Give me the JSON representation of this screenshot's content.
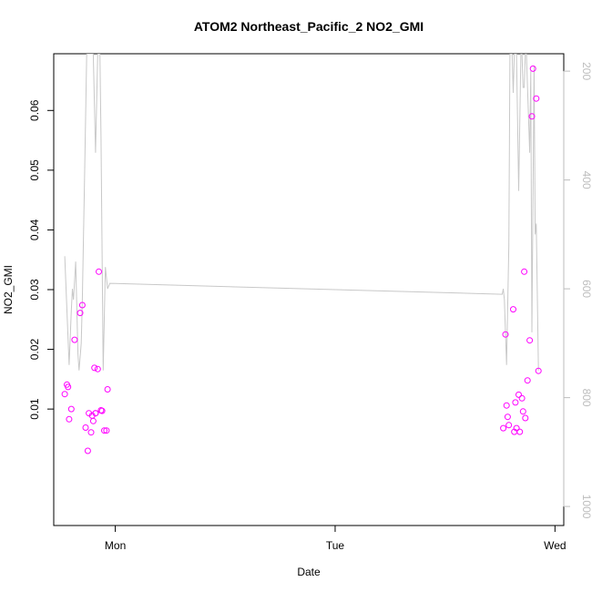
{
  "chart_data": {
    "type": "scatter",
    "title": "ATOM2 Northeast_Pacific_2 NO2_GMI",
    "xlabel": "Date",
    "ylabel": "NO2_GMI",
    "x_ticks": [
      {
        "day": 1,
        "label": "Mon"
      },
      {
        "day": 2,
        "label": "Tue"
      },
      {
        "day": 3,
        "label": "Wed"
      }
    ],
    "xlim_days": [
      0.72,
      3.04
    ],
    "ylim": [
      -0.0095,
      0.0695
    ],
    "y_ticks": [
      0.01,
      0.02,
      0.03,
      0.04,
      0.05,
      0.06
    ],
    "y2_ticks": [
      200,
      400,
      600,
      800,
      1000
    ],
    "y2lim_reversed": [
      1035,
      168
    ],
    "grid": false,
    "series": [
      {
        "kind": "points",
        "axis": "left",
        "color": "#ff00ff",
        "x_days": [
          0.77,
          0.78,
          0.785,
          0.79,
          0.8,
          0.815,
          0.84,
          0.85,
          0.865,
          0.875,
          0.88,
          0.89,
          0.895,
          0.9,
          0.905,
          0.91,
          0.91,
          0.92,
          0.925,
          0.935,
          0.94,
          0.95,
          0.96,
          0.965,
          2.765,
          2.775,
          2.78,
          2.785,
          2.79,
          2.81,
          2.815,
          2.82,
          2.825,
          2.835,
          2.84,
          2.85,
          2.855,
          2.86,
          2.865,
          2.875,
          2.885,
          2.895,
          2.9,
          2.915,
          2.925
        ],
        "y": [
          0.0125,
          0.0141,
          0.0137,
          0.0083,
          0.01,
          0.0216,
          0.0261,
          0.0274,
          0.0069,
          0.003,
          0.0093,
          0.0061,
          0.0089,
          0.008,
          0.0169,
          0.0093,
          0.0093,
          0.0167,
          0.033,
          0.0098,
          0.0097,
          0.0064,
          0.0064,
          0.0133,
          0.0068,
          0.0225,
          0.0106,
          0.0087,
          0.0073,
          0.0267,
          0.0062,
          0.0111,
          0.0068,
          0.0124,
          0.0062,
          0.0118,
          0.0096,
          0.033,
          0.0085,
          0.0148,
          0.0215,
          0.059,
          0.067,
          0.062,
          0.0164
        ]
      },
      {
        "kind": "line",
        "axis": "right",
        "color": "#c8c8c8",
        "x_days": [
          0.77,
          0.78,
          0.79,
          0.8,
          0.805,
          0.81,
          0.82,
          0.83,
          0.835,
          0.845,
          0.85,
          0.86,
          0.87,
          0.88,
          0.89,
          0.9,
          0.91,
          0.92,
          0.93,
          0.935,
          0.945,
          0.955,
          0.965,
          0.975,
          2.76,
          2.765,
          2.77,
          2.78,
          2.79,
          2.795,
          2.805,
          2.81,
          2.815,
          2.825,
          2.835,
          2.845,
          2.85,
          2.855,
          2.86,
          2.865,
          2.87,
          2.875,
          2.885,
          2.89,
          2.895,
          2.905,
          2.91,
          2.915,
          2.925
        ],
        "y": [
          540,
          640,
          740,
          640,
          600,
          620,
          550,
          720,
          750,
          700,
          620,
          400,
          168,
          168,
          168,
          168,
          350,
          168,
          168,
          320,
          750,
          560,
          600,
          590,
          610,
          600,
          620,
          740,
          520,
          168,
          168,
          240,
          168,
          168,
          420,
          168,
          168,
          230,
          230,
          168,
          168,
          230,
          350,
          200,
          680,
          190,
          500,
          480,
          750
        ]
      }
    ]
  }
}
